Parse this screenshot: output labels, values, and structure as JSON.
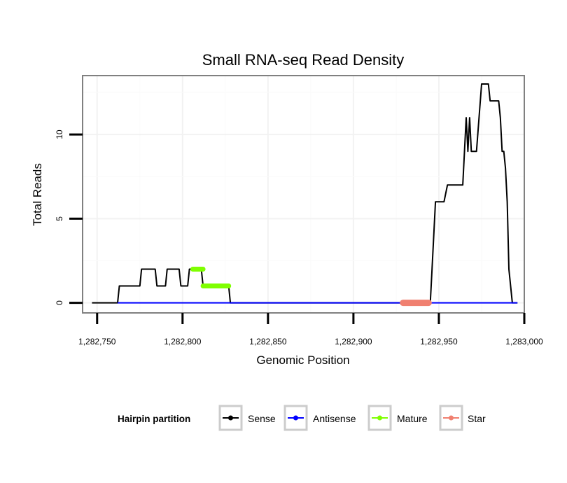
{
  "chart_data": {
    "type": "line",
    "title": "Small RNA-seq Read Density",
    "xlabel": "Genomic Position",
    "ylabel": "Total Reads",
    "xlim": [
      1282741.5,
      1283000
    ],
    "ylim": [
      -0.6,
      13.5
    ],
    "x_ticks": [
      1282750,
      1282800,
      1282850,
      1282900,
      1282950,
      1283000
    ],
    "x_tick_labels": [
      "1,282,750",
      "1,282,800",
      "1,282,850",
      "1,282,900",
      "1,282,950",
      "1,283,000"
    ],
    "y_ticks": [
      0,
      5,
      10
    ],
    "y_tick_labels": [
      "0",
      "5",
      "10"
    ],
    "grid": true,
    "legend": {
      "title": "Hairpin partition",
      "position": "bottom",
      "entries": [
        {
          "name": "Sense",
          "color": "#000000"
        },
        {
          "name": "Antisense",
          "color": "#0000FF"
        },
        {
          "name": "Mature",
          "color": "#7FFF00"
        },
        {
          "name": "Star",
          "color": "#F08070"
        }
      ]
    },
    "series": [
      {
        "name": "Sense",
        "color": "#000000",
        "width": 2,
        "points": [
          [
            1282747,
            0
          ],
          [
            1282762,
            0
          ],
          [
            1282763,
            1
          ],
          [
            1282775,
            1
          ],
          [
            1282776,
            2
          ],
          [
            1282784,
            2
          ],
          [
            1282785,
            1
          ],
          [
            1282790,
            1
          ],
          [
            1282791,
            2
          ],
          [
            1282798,
            2
          ],
          [
            1282799,
            1
          ],
          [
            1282803,
            1
          ],
          [
            1282804,
            2
          ],
          [
            1282811,
            2
          ],
          [
            1282812,
            1
          ],
          [
            1282827,
            1
          ],
          [
            1282828,
            0
          ],
          [
            1282945,
            0
          ],
          [
            1282946,
            2
          ],
          [
            1282948,
            6
          ],
          [
            1282953,
            6
          ],
          [
            1282955,
            7
          ],
          [
            1282964,
            7
          ],
          [
            1282966,
            11
          ],
          [
            1282967,
            9
          ],
          [
            1282968,
            11
          ],
          [
            1282969,
            9
          ],
          [
            1282972,
            9
          ],
          [
            1282975,
            13
          ],
          [
            1282979,
            13
          ],
          [
            1282980,
            12
          ],
          [
            1282985,
            12
          ],
          [
            1282986,
            11
          ],
          [
            1282987,
            9
          ],
          [
            1282988,
            9
          ],
          [
            1282989,
            8
          ],
          [
            1282990,
            6
          ],
          [
            1282991,
            2
          ],
          [
            1282993,
            0
          ],
          [
            1282996,
            0
          ]
        ]
      },
      {
        "name": "Antisense",
        "color": "#0000FF",
        "width": 2,
        "points": [
          [
            1282762,
            0
          ],
          [
            1282828,
            0
          ],
          [
            1282945,
            0
          ],
          [
            1282996,
            0
          ]
        ]
      },
      {
        "name": "Mature",
        "color": "#7FFF00",
        "width": 7,
        "segments": [
          [
            [
              1282806,
              2
            ],
            [
              1282812,
              2
            ]
          ],
          [
            [
              1282812,
              1
            ],
            [
              1282827,
              1
            ]
          ]
        ]
      },
      {
        "name": "Star",
        "color": "#F08070",
        "width": 9,
        "segments": [
          [
            [
              1282929,
              0
            ],
            [
              1282944,
              0
            ]
          ]
        ]
      }
    ]
  }
}
